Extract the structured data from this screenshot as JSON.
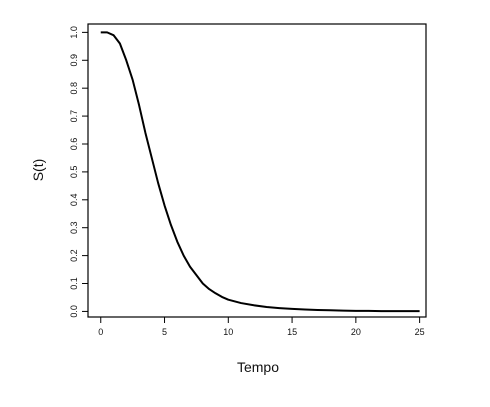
{
  "chart_data": {
    "type": "line",
    "title": "",
    "xlabel": "Tempo",
    "ylabel": "S(t)",
    "xlim": [
      -1,
      25.5
    ],
    "ylim": [
      -0.02,
      1.03
    ],
    "xticks": [
      0,
      5,
      10,
      15,
      20,
      25
    ],
    "yticks": [
      0.0,
      0.1,
      0.2,
      0.3,
      0.4,
      0.5,
      0.6,
      0.7,
      0.8,
      0.9,
      1.0
    ],
    "xtick_labels": [
      "0",
      "5",
      "10",
      "15",
      "20",
      "25"
    ],
    "ytick_labels": [
      "0.0",
      "0.1",
      "0.2",
      "0.3",
      "0.4",
      "0.5",
      "0.6",
      "0.7",
      "0.8",
      "0.9",
      "1.0"
    ],
    "grid": false,
    "legend": "none",
    "series": [
      {
        "color": "#000000",
        "x": [
          0,
          0.5,
          1,
          1.5,
          2,
          2.5,
          3,
          3.5,
          4,
          4.5,
          5,
          5.5,
          6,
          6.5,
          7,
          7.5,
          8,
          8.5,
          9,
          9.5,
          10,
          11,
          12,
          13,
          14,
          15,
          16,
          17,
          18,
          19,
          20,
          21,
          22,
          23,
          24,
          25
        ],
        "y": [
          1.0,
          1.0,
          0.99,
          0.96,
          0.9,
          0.83,
          0.74,
          0.64,
          0.55,
          0.46,
          0.38,
          0.31,
          0.25,
          0.2,
          0.16,
          0.13,
          0.1,
          0.08,
          0.065,
          0.052,
          0.042,
          0.03,
          0.022,
          0.016,
          0.012,
          0.009,
          0.007,
          0.005,
          0.004,
          0.003,
          0.002,
          0.002,
          0.001,
          0.001,
          0.001,
          0.001
        ]
      }
    ]
  }
}
